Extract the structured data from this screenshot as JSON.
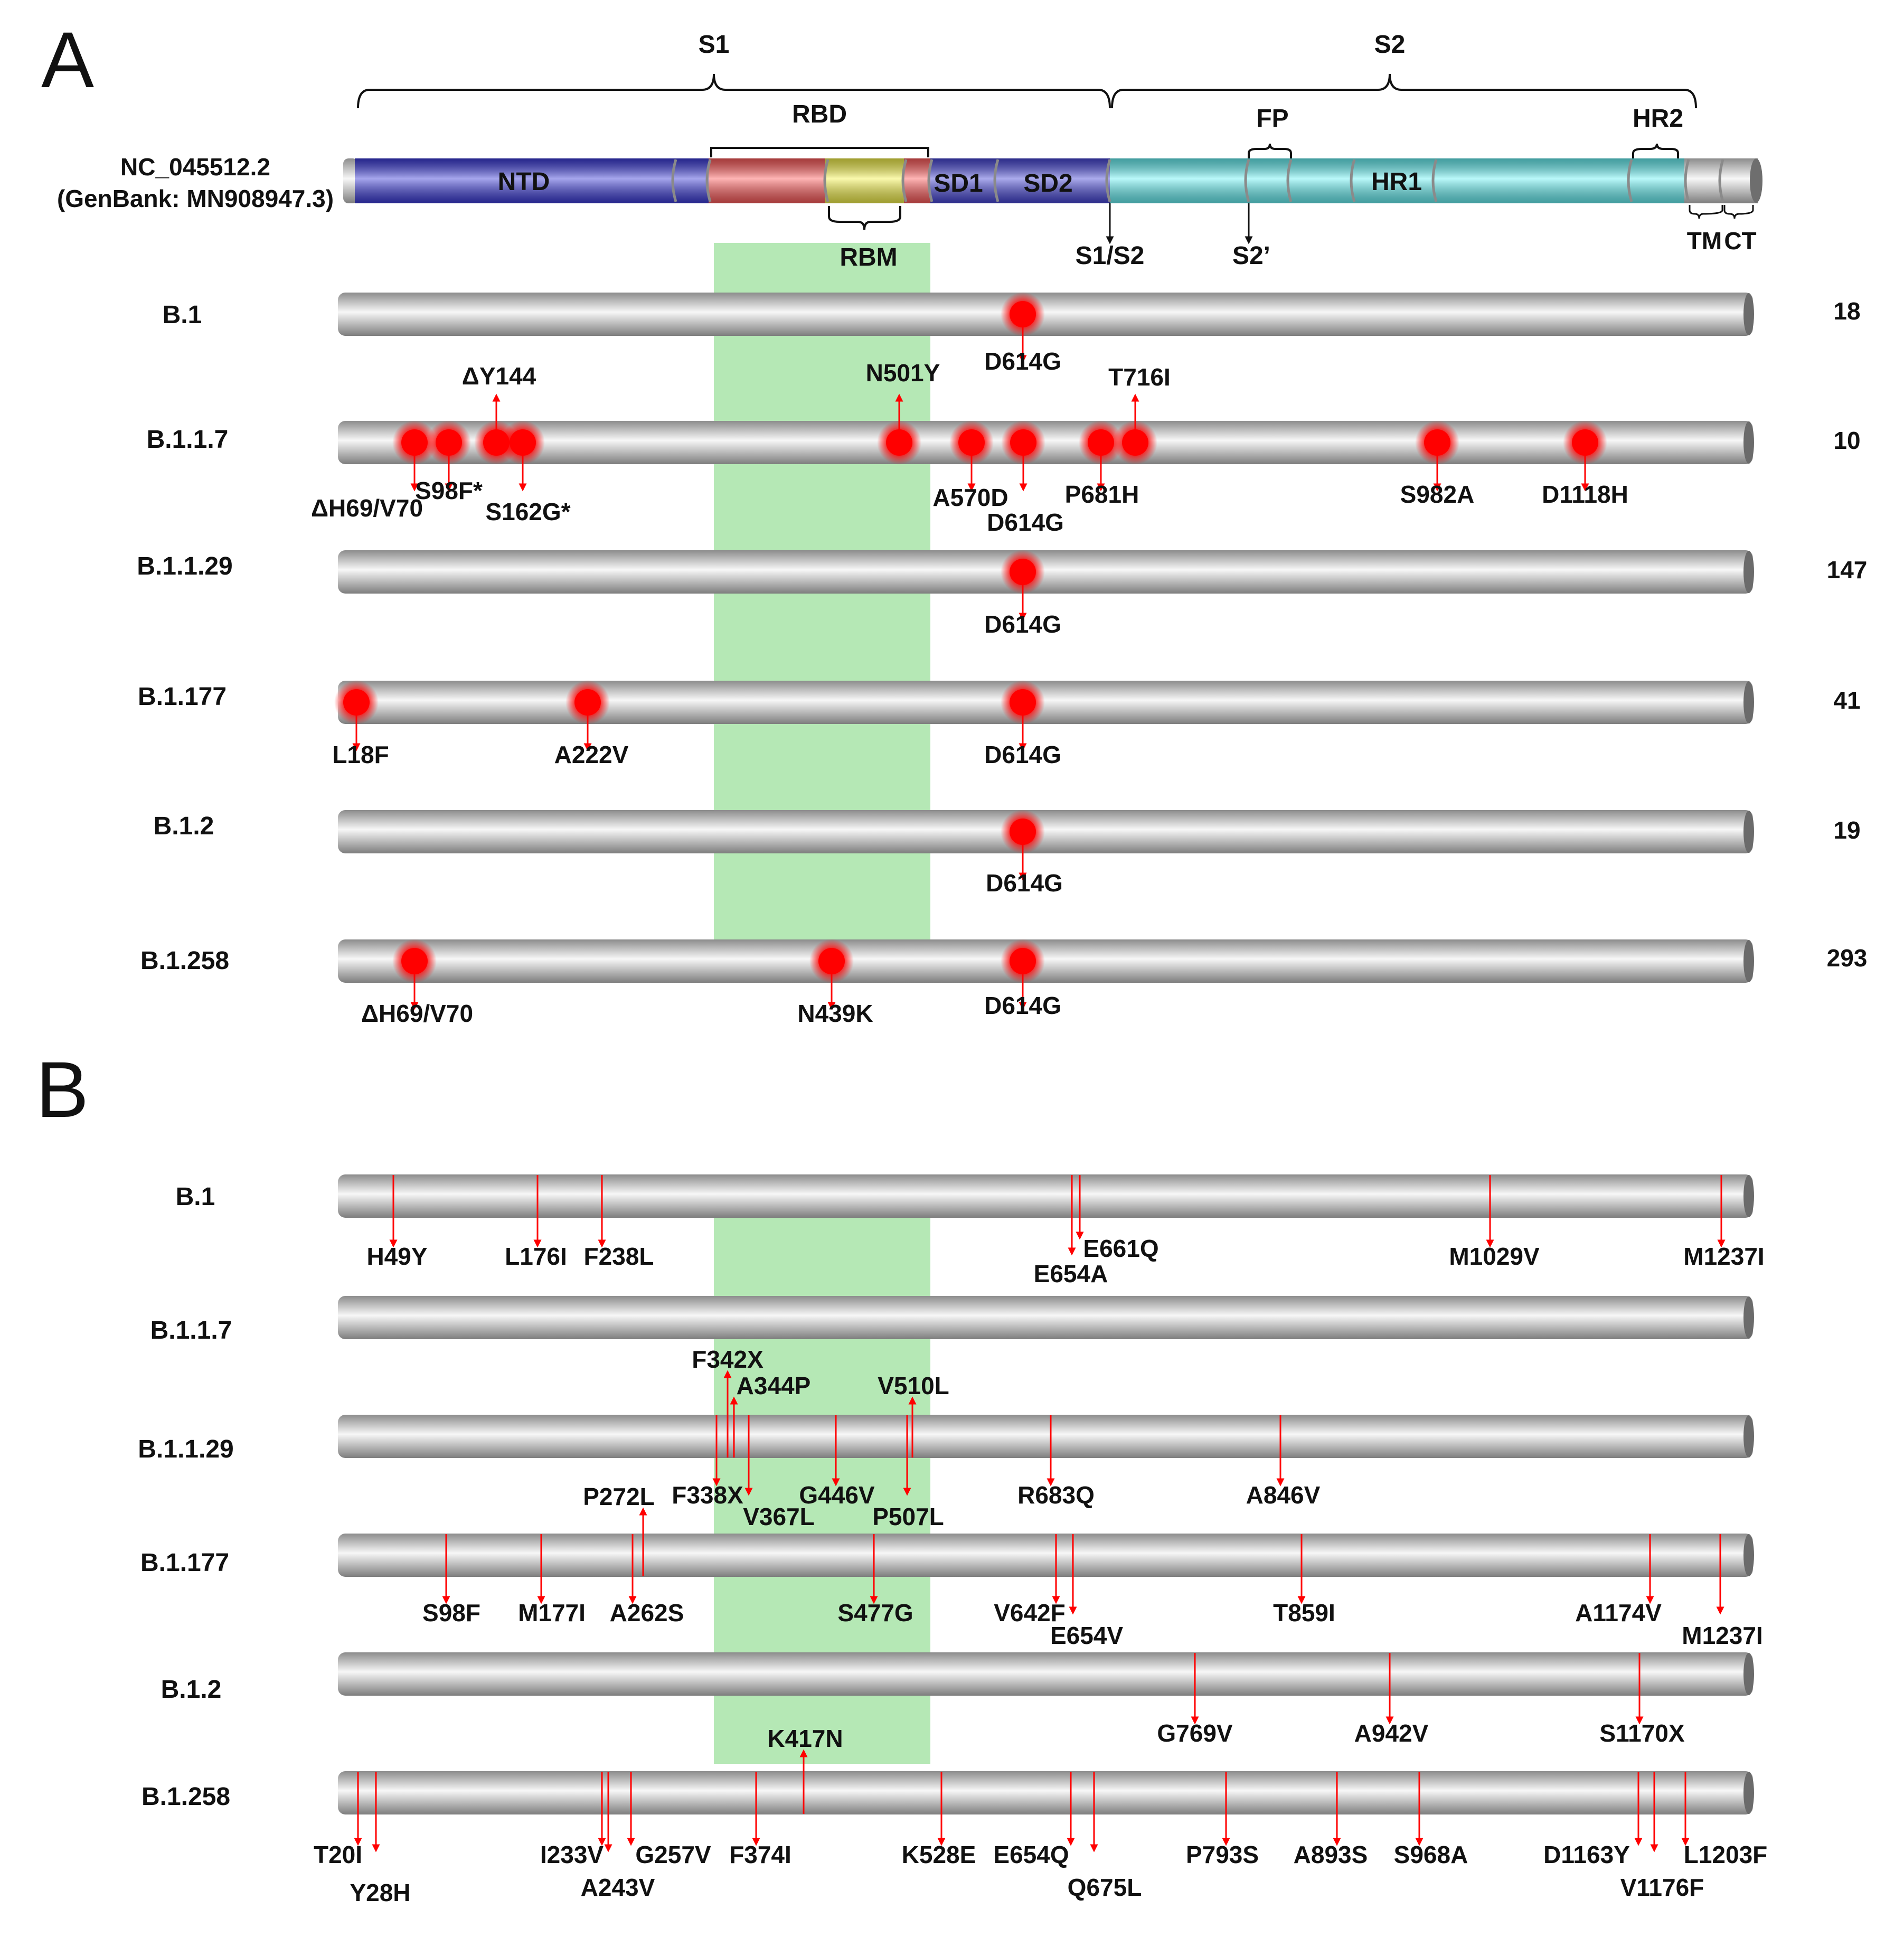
{
  "panel_a": {
    "letter": "A",
    "reference": {
      "id_line1": "NC_045512.2",
      "id_line2": "(GenBank: MN908947.3)",
      "domains": {
        "ntd": "NTD",
        "sd1": "SD1",
        "sd2": "SD2",
        "hr1": "HR1"
      },
      "brackets": {
        "s1": "S1",
        "s2": "S2",
        "rbd": "RBD",
        "fp": "FP",
        "hr2": "HR2",
        "rbm": "RBM",
        "tm": "TM",
        "ct": "CT"
      },
      "sites": {
        "s1s2": "S1/S2",
        "s2prime": "S2’"
      },
      "colors": {
        "ntd": "#3a3ad8",
        "rbd": "#ff5a5a",
        "rbm": "#f6f34a",
        "sd": "#4545d6",
        "s2": "#66f2f5",
        "rbd_highlight": "#b5e8b5",
        "mutation": "#ff0000"
      }
    },
    "lineages": [
      {
        "name": "B.1",
        "count": "18",
        "mutations": [
          "D614G"
        ]
      },
      {
        "name": "B.1.1.7",
        "count": "10",
        "mutations": [
          "ΔH69/V70",
          "S98F*",
          "ΔY144",
          "S162G*",
          "N501Y",
          "A570D",
          "D614G",
          "P681H",
          "T716I",
          "S982A",
          "D1118H"
        ]
      },
      {
        "name": "B.1.1.29",
        "count": "147",
        "mutations": [
          "D614G"
        ]
      },
      {
        "name": "B.1.177",
        "count": "41",
        "mutations": [
          "L18F",
          "A222V",
          "D614G"
        ]
      },
      {
        "name": "B.1.2",
        "count": "19",
        "mutations": [
          "D614G"
        ]
      },
      {
        "name": "B.1.258",
        "count": "293",
        "mutations": [
          "ΔH69/V70",
          "N439K",
          "D614G"
        ]
      }
    ]
  },
  "panel_b": {
    "letter": "B",
    "lineages": [
      {
        "name": "B.1",
        "mutations": [
          "H49Y",
          "L176I",
          "F238L",
          "E654A",
          "E661Q",
          "M1029V",
          "M1237I"
        ]
      },
      {
        "name": "B.1.1.7",
        "mutations": []
      },
      {
        "name": "B.1.1.29",
        "mutations": [
          "F342X",
          "A344P",
          "V510L",
          "F338X",
          "V367L",
          "G446V",
          "P507L",
          "R683Q",
          "A846V"
        ]
      },
      {
        "name": "B.1.177",
        "mutations": [
          "P272L",
          "S98F",
          "M177I",
          "A262S",
          "S477G",
          "V642F",
          "E654V",
          "T859I",
          "A1174V",
          "M1237I"
        ]
      },
      {
        "name": "B.1.2",
        "mutations": [
          "G769V",
          "A942V",
          "S1170X"
        ]
      },
      {
        "name": "B.1.258",
        "mutations": [
          "K417N",
          "T20I",
          "Y28H",
          "I233V",
          "A243V",
          "G257V",
          "F374I",
          "K528E",
          "E654Q",
          "Q675L",
          "P793S",
          "A893S",
          "S968A",
          "D1163Y",
          "V1176F",
          "L1203F"
        ]
      }
    ]
  }
}
